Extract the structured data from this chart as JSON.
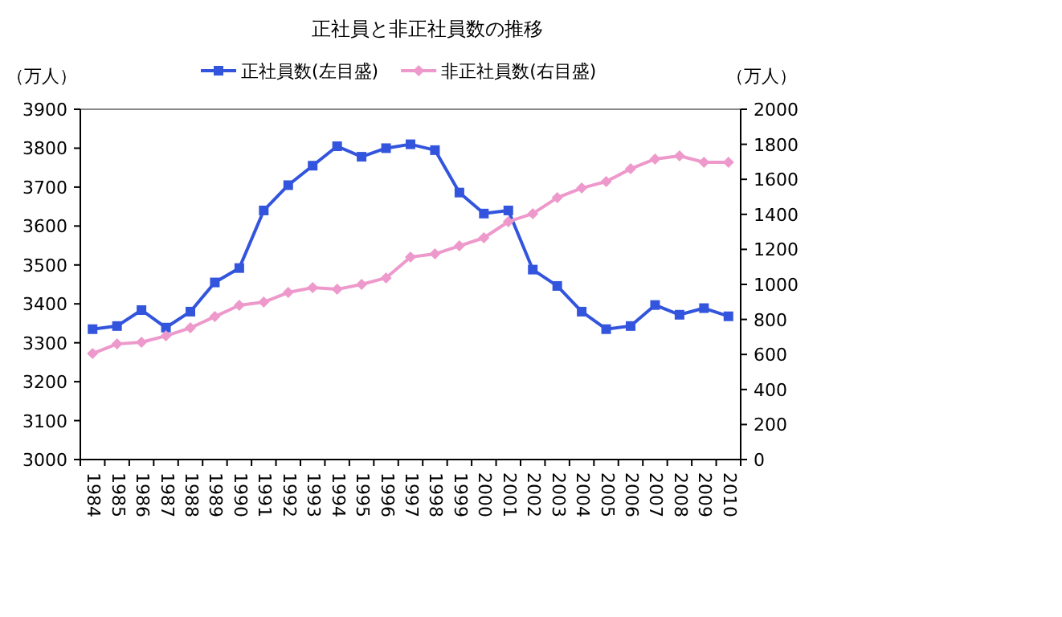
{
  "chart_data": {
    "type": "line",
    "title": "正社員と非正社員数の推移",
    "ylabel": "（万人）",
    "y2label": "（万人）",
    "categories": [
      "1984",
      "1985",
      "1986",
      "1987",
      "1988",
      "1989",
      "1990",
      "1991",
      "1992",
      "1993",
      "1994",
      "1995",
      "1996",
      "1997",
      "1998",
      "1999",
      "2000",
      "2001",
      "2002",
      "2003",
      "2004",
      "2005",
      "2006",
      "2007",
      "2008",
      "2009",
      "2010"
    ],
    "series": [
      {
        "name": "正社員数(左目盛)",
        "color": "#3355dd",
        "marker": "square",
        "values": [
          3335,
          3343,
          3384,
          3339,
          3380,
          3455,
          3492,
          3640,
          3705,
          3755,
          3805,
          3778,
          3800,
          3810,
          3795,
          3686,
          3632,
          3640,
          3488,
          3446,
          3380,
          3335,
          3343,
          3397,
          3372,
          3389,
          3368
        ]
      },
      {
        "name": "非正社員数(右目盛)",
        "color": "#ee99cc",
        "marker": "diamond",
        "axis": "y2",
        "values": [
          605,
          660,
          670,
          706,
          752,
          816,
          881,
          899,
          954,
          982,
          972,
          1000,
          1037,
          1156,
          1174,
          1220,
          1266,
          1358,
          1404,
          1495,
          1550,
          1587,
          1660,
          1716,
          1734,
          1697,
          1697
        ]
      }
    ],
    "ylim": [
      3000,
      3900
    ],
    "yticks": [
      3000,
      3100,
      3200,
      3300,
      3400,
      3500,
      3600,
      3700,
      3800,
      3900
    ],
    "y2lim": [
      0,
      2000
    ],
    "y2ticks": [
      0,
      200,
      400,
      600,
      800,
      1000,
      1200,
      1400,
      1600,
      1800,
      2000
    ],
    "legend": "top",
    "grid": false
  }
}
